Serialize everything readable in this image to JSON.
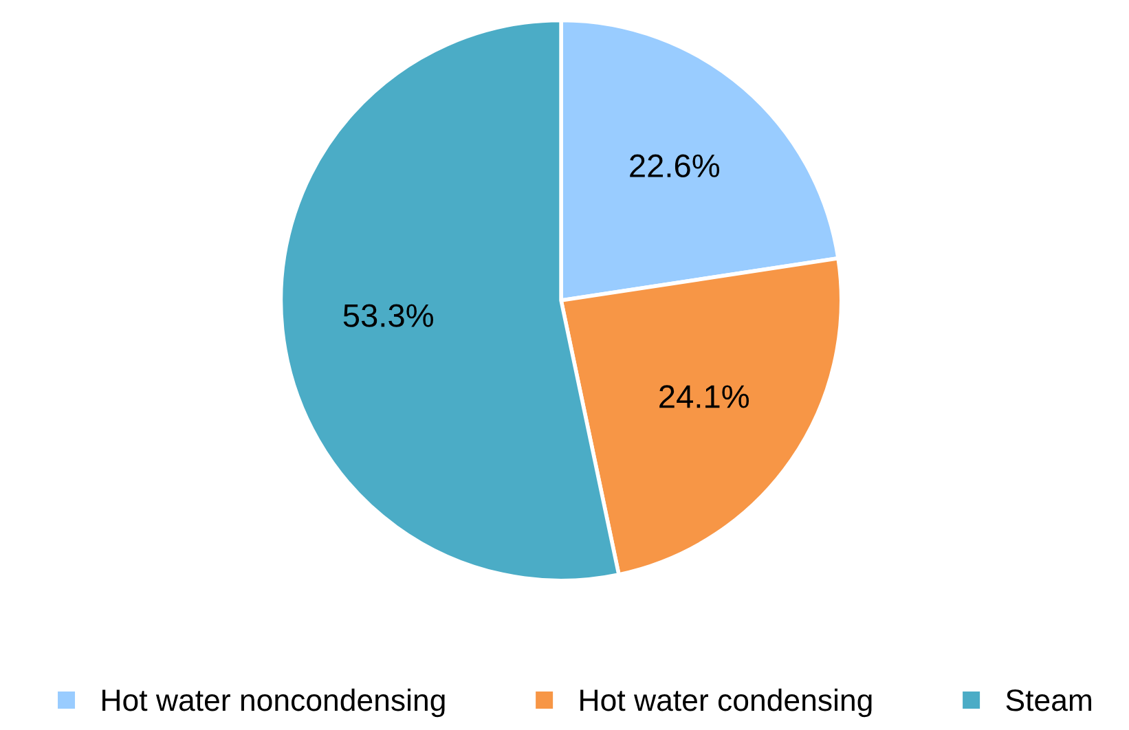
{
  "chart_data": {
    "type": "pie",
    "categories": [
      "Hot water noncondensing",
      "Hot water condensing",
      "Steam"
    ],
    "values": [
      22.6,
      24.1,
      53.3
    ],
    "colors": [
      "#99ccff",
      "#f79646",
      "#4bacc6"
    ],
    "value_labels": [
      "22.6%",
      "24.1%",
      "53.3%"
    ],
    "legend": "bottom"
  }
}
